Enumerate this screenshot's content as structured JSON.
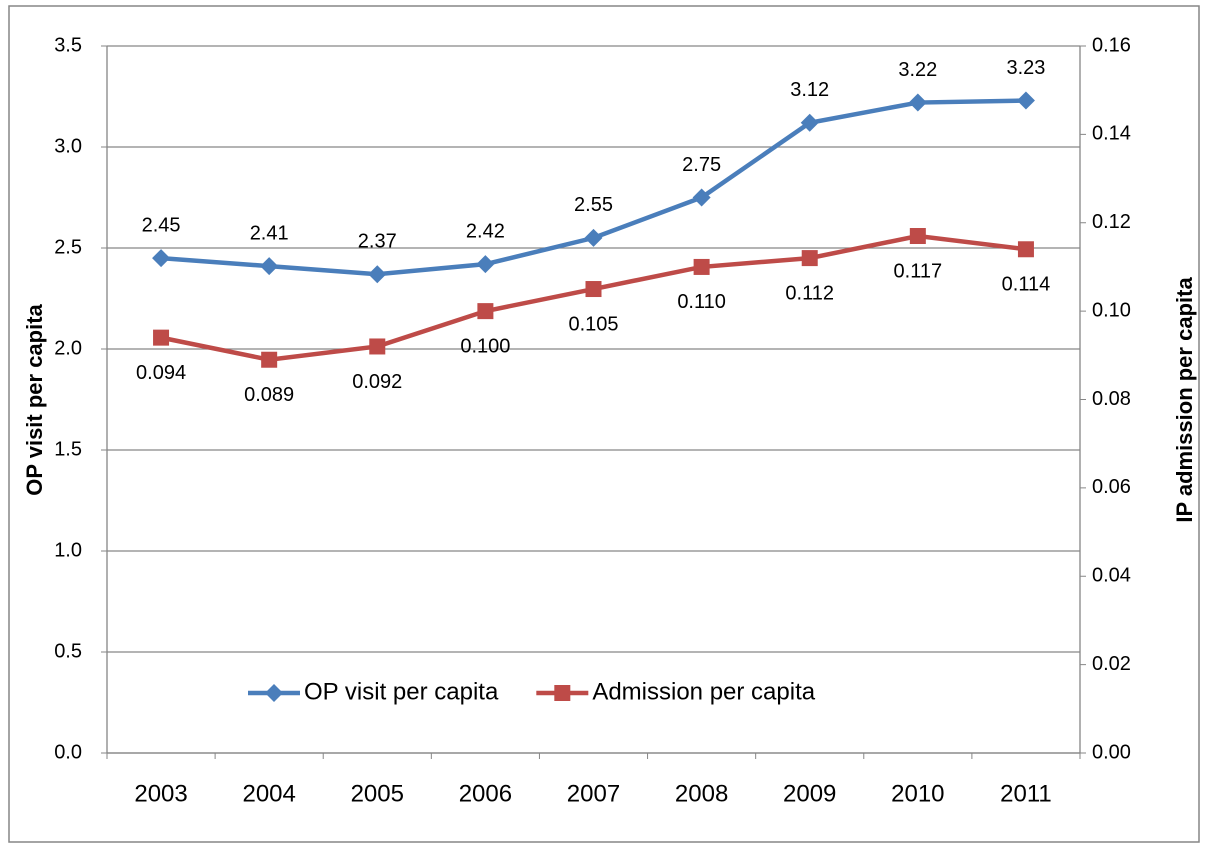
{
  "chart_data": {
    "type": "line",
    "categories": [
      "2003",
      "2004",
      "2005",
      "2006",
      "2007",
      "2008",
      "2009",
      "2010",
      "2011"
    ],
    "y_label": "OP visit per capita",
    "y2_label": "IP admission per capita",
    "series": [
      {
        "name": "OP visit per capita",
        "color": "#4a7ebb",
        "marker": "diamond",
        "values": [
          2.45,
          2.41,
          2.37,
          2.42,
          2.55,
          2.75,
          3.12,
          3.22,
          3.23
        ]
      },
      {
        "name": "Admission per capita",
        "color": "#be4b48",
        "marker": "square",
        "axis": "y2",
        "values": [
          0.094,
          0.089,
          0.092,
          0.1,
          0.105,
          0.11,
          0.112,
          0.117,
          0.114
        ],
        "value_labels": [
          "0.094",
          "0.089",
          "0.092",
          "0.100",
          "0.105",
          "0.110",
          "0.112",
          "0.117",
          "0.114"
        ]
      }
    ],
    "ylim": [
      0,
      3.5
    ],
    "yticks": [
      {
        "value": 0,
        "label": "0.0"
      },
      0.5,
      {
        "value": 1,
        "label": "1.0"
      },
      1.5,
      {
        "value": 2,
        "label": "2.0"
      },
      2.5,
      {
        "value": 3,
        "label": "3.0"
      },
      3.5
    ],
    "y2lim": [
      0,
      0.16
    ],
    "y2ticks": [
      {
        "value": 0,
        "label": "0.00"
      },
      0.02,
      0.04,
      0.06,
      0.08,
      {
        "value": 0.1,
        "label": "0.10"
      },
      0.12,
      0.14,
      0.16
    ],
    "grid": true,
    "legend": "bottom"
  }
}
